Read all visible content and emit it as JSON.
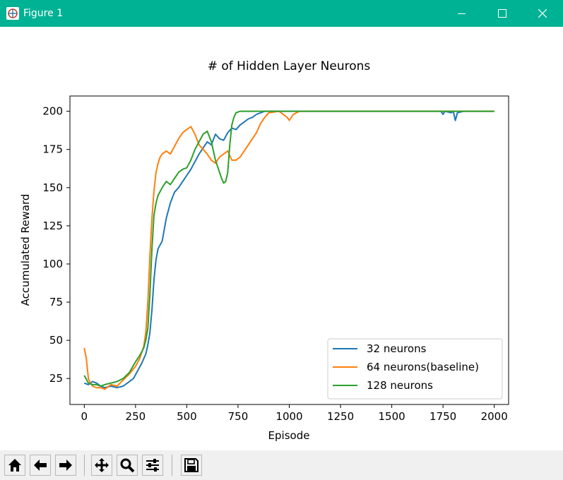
{
  "window": {
    "title": "Figure 1",
    "title_bar_color": "#00b294",
    "controls": [
      "minimize",
      "maximize",
      "close"
    ]
  },
  "toolbar": {
    "buttons": [
      {
        "name": "home",
        "icon": "home-icon"
      },
      {
        "name": "back",
        "icon": "arrow-left-icon"
      },
      {
        "name": "forward",
        "icon": "arrow-right-icon"
      },
      {
        "name": "pan",
        "icon": "move-icon"
      },
      {
        "name": "zoom",
        "icon": "magnifier-icon"
      },
      {
        "name": "configure-subplots",
        "icon": "sliders-icon"
      },
      {
        "name": "save",
        "icon": "floppy-disk-icon"
      }
    ]
  },
  "chart_data": {
    "type": "line",
    "title": "# of Hidden Layer Neurons",
    "xlabel": "Episode",
    "ylabel": "Accumulated Reward",
    "xlim": [
      -70,
      2070
    ],
    "ylim": [
      8,
      210
    ],
    "xticks": [
      0,
      250,
      500,
      750,
      1000,
      1250,
      1500,
      1750,
      2000
    ],
    "yticks": [
      25,
      50,
      75,
      100,
      125,
      150,
      175,
      200
    ],
    "grid": false,
    "legend_position": "lower right",
    "series": [
      {
        "name": "32 neurons",
        "color": "#1f77b4",
        "x": [
          0,
          20,
          40,
          60,
          80,
          100,
          130,
          160,
          190,
          210,
          240,
          260,
          280,
          300,
          310,
          320,
          330,
          340,
          350,
          360,
          380,
          400,
          420,
          440,
          460,
          480,
          500,
          520,
          540,
          560,
          580,
          600,
          620,
          640,
          660,
          680,
          700,
          720,
          740,
          760,
          780,
          800,
          820,
          840,
          860,
          880,
          900,
          950,
          1000,
          1100,
          1200,
          1300,
          1400,
          1500,
          1600,
          1700,
          1740,
          1750,
          1760,
          1790,
          1800,
          1810,
          1820,
          1850,
          1900,
          2000
        ],
        "y": [
          22,
          21,
          23,
          22,
          20,
          19,
          20,
          19,
          20,
          22,
          25,
          30,
          35,
          41,
          47,
          55,
          70,
          90,
          103,
          110,
          115,
          130,
          140,
          147,
          150,
          154,
          158,
          162,
          167,
          172,
          176,
          180,
          178,
          185,
          182,
          181,
          186,
          189,
          188,
          191,
          193,
          195,
          196,
          198,
          199,
          200,
          200,
          200,
          200,
          200,
          200,
          200,
          200,
          200,
          200,
          200,
          200,
          198,
          200,
          199,
          200,
          194,
          199,
          200,
          200,
          200
        ]
      },
      {
        "name": "64 neurons(baseline)",
        "color": "#ff7f0e",
        "x": [
          0,
          10,
          20,
          30,
          40,
          60,
          80,
          100,
          130,
          160,
          190,
          220,
          250,
          270,
          290,
          300,
          310,
          320,
          330,
          340,
          350,
          360,
          370,
          380,
          400,
          420,
          440,
          460,
          480,
          500,
          520,
          540,
          560,
          580,
          600,
          620,
          640,
          660,
          680,
          700,
          720,
          740,
          760,
          780,
          800,
          820,
          840,
          860,
          880,
          900,
          950,
          990,
          1000,
          1020,
          1050,
          1100,
          1200,
          1400,
          1600,
          1800,
          2000
        ],
        "y": [
          45,
          38,
          25,
          22,
          20,
          19,
          19,
          18,
          21,
          20,
          24,
          28,
          33,
          38,
          46,
          55,
          75,
          105,
          130,
          148,
          160,
          166,
          170,
          172,
          174,
          172,
          177,
          182,
          186,
          188,
          190,
          185,
          178,
          175,
          172,
          168,
          166,
          170,
          172,
          174,
          168,
          168,
          170,
          174,
          178,
          182,
          186,
          192,
          196,
          199,
          200,
          196,
          194,
          198,
          200,
          200,
          200,
          200,
          200,
          200,
          200
        ]
      },
      {
        "name": "128 neurons",
        "color": "#2ca02c",
        "x": [
          0,
          20,
          40,
          60,
          80,
          100,
          130,
          160,
          190,
          220,
          250,
          270,
          290,
          300,
          310,
          320,
          330,
          340,
          350,
          360,
          380,
          400,
          420,
          440,
          460,
          480,
          500,
          520,
          540,
          560,
          580,
          600,
          620,
          640,
          660,
          670,
          680,
          690,
          700,
          710,
          720,
          730,
          740,
          760,
          800,
          900,
          1000,
          1200,
          1500,
          1800,
          2000
        ],
        "y": [
          27,
          22,
          21,
          21,
          20,
          21,
          22,
          23,
          25,
          29,
          36,
          40,
          45,
          50,
          58,
          80,
          110,
          132,
          140,
          145,
          150,
          154,
          152,
          156,
          160,
          162,
          163,
          168,
          175,
          180,
          185,
          187,
          180,
          168,
          160,
          156,
          153,
          154,
          160,
          178,
          191,
          196,
          199,
          200,
          200,
          200,
          200,
          200,
          200,
          200,
          200
        ]
      }
    ]
  }
}
